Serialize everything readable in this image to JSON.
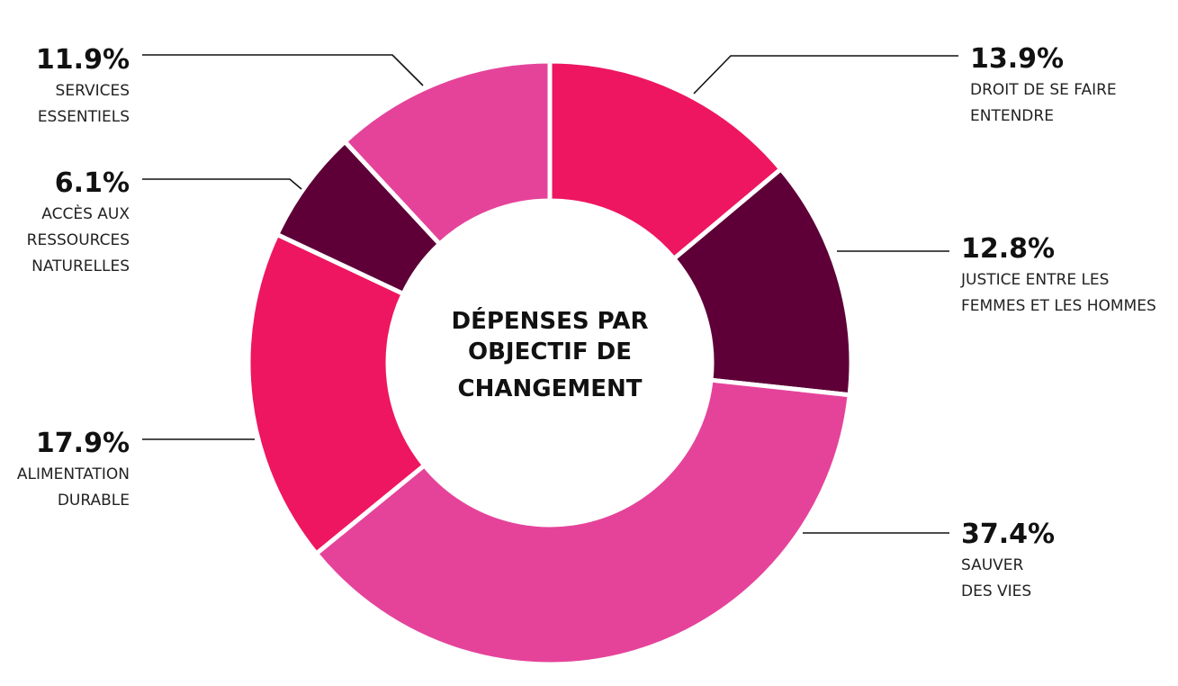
{
  "chart_data": {
    "type": "pie",
    "title_lines": [
      "DÉPENSES PAR",
      "OBJECTIF DE",
      "CHANGEMENT"
    ],
    "slices": [
      {
        "pct_label": "13.9%",
        "label_lines": [
          "DROIT DE SE FAIRE",
          "ENTENDRE"
        ],
        "value": 13.9,
        "color": "#EE1660"
      },
      {
        "pct_label": "12.8%",
        "label_lines": [
          "JUSTICE ENTRE LES",
          "FEMMES ET LES HOMMES"
        ],
        "value": 12.8,
        "color": "#5E0037"
      },
      {
        "pct_label": "37.4%",
        "label_lines": [
          "SAUVER",
          "DES VIES"
        ],
        "value": 37.4,
        "color": "#E5439A"
      },
      {
        "pct_label": "17.9%",
        "label_lines": [
          "ALIMENTATION",
          "DURABLE"
        ],
        "value": 17.9,
        "color": "#EE1660"
      },
      {
        "pct_label": "6.1%",
        "label_lines": [
          "ACCÈS AUX",
          "RESSOURCES",
          "NATURELLES"
        ],
        "value": 6.1,
        "color": "#5E0037"
      },
      {
        "pct_label": "11.9%",
        "label_lines": [
          "SERVICES",
          "ESSENTIELS"
        ],
        "value": 11.9,
        "color": "#E5439A"
      }
    ]
  }
}
